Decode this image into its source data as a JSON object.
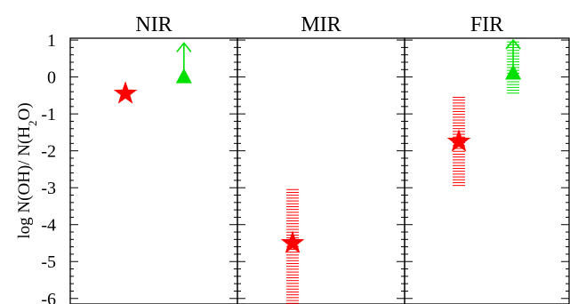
{
  "chart_data": {
    "type": "scatter",
    "ylabel": {
      "main": "log  N(OH)/ N(H",
      "sub": "2",
      "tail": "O)"
    },
    "ylim": [
      -6.15,
      1.05
    ],
    "yticks": [
      {
        "value": 1,
        "label": "1"
      },
      {
        "value": 0,
        "label": "0"
      },
      {
        "value": -1,
        "label": "-1"
      },
      {
        "value": -2,
        "label": "-2"
      },
      {
        "value": -3,
        "label": "-3"
      },
      {
        "value": -4,
        "label": "-4"
      },
      {
        "value": -5,
        "label": "-5"
      },
      {
        "value": -6,
        "label": "-6"
      }
    ],
    "colors": {
      "red": "#ff0000",
      "green": "#00e000"
    },
    "panels": [
      {
        "title": "NIR",
        "points": [
          {
            "marker": "star",
            "color": "red",
            "xfrac": 0.33,
            "y": -0.45
          },
          {
            "marker": "triangle",
            "color": "green",
            "xfrac": 0.68,
            "y": 0.0,
            "lower_limit": true,
            "arrow_to": 0.92
          }
        ]
      },
      {
        "title": "MIR",
        "points": [
          {
            "marker": "star",
            "color": "red",
            "xfrac": 0.33,
            "y": -4.5,
            "err_low": -6.15,
            "err_high": -3.05
          }
        ]
      },
      {
        "title": "FIR",
        "points": [
          {
            "marker": "star",
            "color": "red",
            "xfrac": 0.33,
            "y": -1.75,
            "err_low": -2.97,
            "err_high": -0.55
          },
          {
            "marker": "triangle",
            "color": "green",
            "xfrac": 0.66,
            "y": 0.1,
            "lower_limit": true,
            "arrow_to": 1.0,
            "err_low": -0.5,
            "err_high": 0.95
          }
        ]
      }
    ]
  }
}
